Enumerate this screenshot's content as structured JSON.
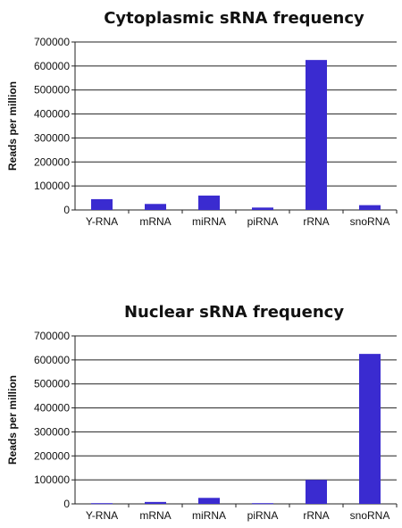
{
  "chart_data": [
    {
      "type": "bar",
      "title": "Cytoplasmic sRNA frequency",
      "xlabel": "",
      "ylabel": "Reads per million",
      "ylim": [
        0,
        700000
      ],
      "yticks": [
        "0",
        "100000",
        "200000",
        "300000",
        "400000",
        "500000",
        "600000",
        "700000"
      ],
      "grid": true,
      "categories": [
        "Y-RNA",
        "mRNA",
        "miRNA",
        "piRNA",
        "rRNA",
        "snoRNA"
      ],
      "values": [
        45000,
        25000,
        60000,
        10000,
        625000,
        20000
      ],
      "bar_color": "#3a2bd0"
    },
    {
      "type": "bar",
      "title": "Nuclear sRNA frequency",
      "xlabel": "",
      "ylabel": "Reads per million",
      "ylim": [
        0,
        700000
      ],
      "yticks": [
        "0",
        "100000",
        "200000",
        "300000",
        "400000",
        "500000",
        "600000",
        "700000"
      ],
      "grid": true,
      "categories": [
        "Y-RNA",
        "mRNA",
        "miRNA",
        "piRNA",
        "rRNA",
        "snoRNA"
      ],
      "values": [
        3000,
        8000,
        25000,
        3000,
        100000,
        625000
      ],
      "bar_color": "#3a2bd0"
    }
  ]
}
